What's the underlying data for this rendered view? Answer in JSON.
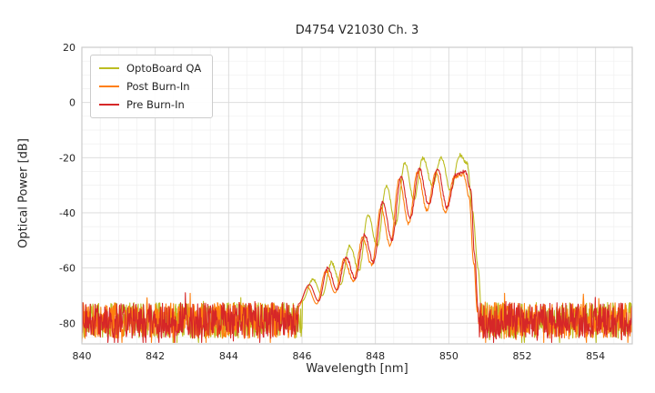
{
  "chart_data": {
    "type": "line",
    "title": "D4754 V21030 Ch. 3",
    "xlabel": "Wavelength [nm]",
    "ylabel": "Optical Power [dB]",
    "xlim": [
      840,
      855
    ],
    "ylim": [
      -87.5,
      20
    ],
    "xticks": [
      840,
      842,
      844,
      846,
      848,
      850,
      852,
      854
    ],
    "yticks": [
      20,
      0,
      -20,
      -40,
      -60,
      -80
    ],
    "grid": true,
    "minor_grid": {
      "x_step": 0.5,
      "y_step": 5
    },
    "legend_position": "upper left",
    "noise_floor": {
      "mean_db": -79,
      "spread_db": 13,
      "deep_spike_chance": 0.06,
      "deep_spike_depth_db": 8,
      "up_spike_chance": 0.04,
      "up_spike_height_db": 5,
      "min_db": -87,
      "sample_step_nm": 0.012
    },
    "series": [
      {
        "name": "OptoBoard QA",
        "color": "#bcbd22",
        "seed": 11,
        "envelope_points": [
          [
            846.0,
            -72
          ],
          [
            846.3,
            -64
          ],
          [
            846.55,
            -70
          ],
          [
            846.8,
            -58
          ],
          [
            847.05,
            -66
          ],
          [
            847.3,
            -52
          ],
          [
            847.55,
            -61
          ],
          [
            847.8,
            -41
          ],
          [
            848.05,
            -52
          ],
          [
            848.3,
            -30
          ],
          [
            848.55,
            -44
          ],
          [
            848.8,
            -22
          ],
          [
            849.05,
            -35
          ],
          [
            849.3,
            -20
          ],
          [
            849.55,
            -30
          ],
          [
            849.8,
            -20
          ],
          [
            850.05,
            -32
          ],
          [
            850.3,
            -19
          ],
          [
            850.5,
            -22
          ],
          [
            850.65,
            -40
          ],
          [
            850.8,
            -60
          ],
          [
            850.9,
            -78
          ]
        ]
      },
      {
        "name": "Post Burn-In",
        "color": "#ff7f0e",
        "seed": 7,
        "envelope_points": [
          [
            845.9,
            -74
          ],
          [
            846.15,
            -67
          ],
          [
            846.4,
            -73
          ],
          [
            846.65,
            -61
          ],
          [
            846.9,
            -69
          ],
          [
            847.15,
            -57
          ],
          [
            847.4,
            -65
          ],
          [
            847.65,
            -49
          ],
          [
            847.9,
            -59
          ],
          [
            848.15,
            -38
          ],
          [
            848.4,
            -52
          ],
          [
            848.65,
            -28
          ],
          [
            848.9,
            -44
          ],
          [
            849.15,
            -25
          ],
          [
            849.4,
            -39
          ],
          [
            849.65,
            -25
          ],
          [
            849.9,
            -40
          ],
          [
            850.15,
            -27
          ],
          [
            850.4,
            -26
          ],
          [
            850.55,
            -34
          ],
          [
            850.68,
            -58
          ],
          [
            850.78,
            -76
          ]
        ]
      },
      {
        "name": "Pre Burn-In",
        "color": "#d62728",
        "seed": 3,
        "envelope_points": [
          [
            845.9,
            -73
          ],
          [
            846.2,
            -66
          ],
          [
            846.45,
            -72
          ],
          [
            846.7,
            -60
          ],
          [
            846.95,
            -68
          ],
          [
            847.2,
            -56
          ],
          [
            847.45,
            -64
          ],
          [
            847.7,
            -48
          ],
          [
            847.95,
            -58
          ],
          [
            848.2,
            -36
          ],
          [
            848.45,
            -50
          ],
          [
            848.7,
            -27
          ],
          [
            848.95,
            -42
          ],
          [
            849.2,
            -24
          ],
          [
            849.45,
            -37
          ],
          [
            849.7,
            -24
          ],
          [
            849.95,
            -38
          ],
          [
            850.2,
            -26
          ],
          [
            850.45,
            -25
          ],
          [
            850.6,
            -32
          ],
          [
            850.7,
            -55
          ],
          [
            850.8,
            -75
          ]
        ]
      }
    ]
  }
}
